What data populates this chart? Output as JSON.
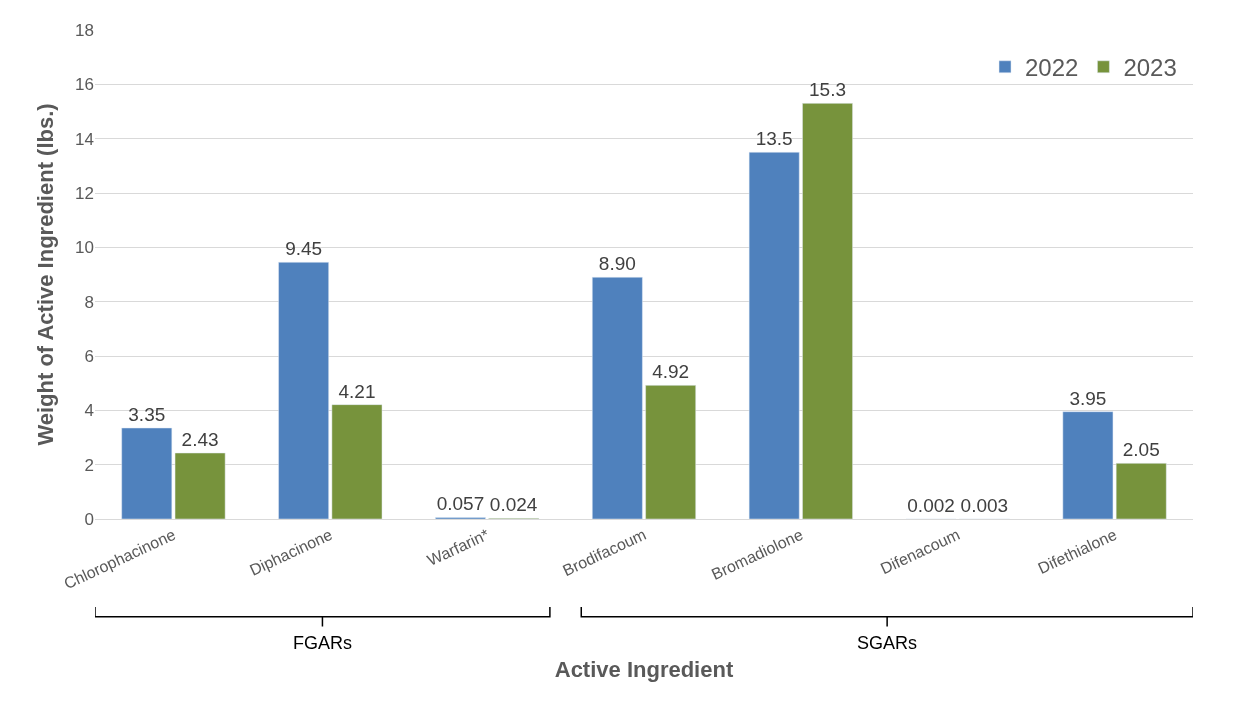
{
  "chart_data": {
    "type": "bar",
    "categories": [
      "Chlorophacinone",
      "Diphacinone",
      "Warfarin*",
      "Brodifacoum",
      "Bromadiolone",
      "Difenacoum",
      "Difethialone"
    ],
    "series": [
      {
        "name": "2022",
        "color": "#4f81bd",
        "values": [
          3.35,
          9.45,
          0.057,
          8.9,
          13.5,
          0.002,
          3.95
        ],
        "value_labels": [
          "3.35",
          "9.45",
          "0.057",
          "8.90",
          "13.5",
          "0.002",
          "3.95"
        ]
      },
      {
        "name": "2023",
        "color": "#77933c",
        "values": [
          2.43,
          4.21,
          0.024,
          4.92,
          15.3,
          0.003,
          2.05
        ],
        "value_labels": [
          "2.43",
          "4.21",
          "0.024",
          "4.92",
          "15.3",
          "0.003",
          "2.05"
        ]
      }
    ],
    "xlabel": "Active Ingredient",
    "ylabel": "Weight of Active Ingredient (lbs.)",
    "ylim": [
      0,
      18
    ],
    "yticks": [
      0,
      2,
      4,
      6,
      8,
      10,
      12,
      14,
      16,
      18
    ],
    "grid": "y",
    "legend": "top right",
    "annotations": [
      "FGARs",
      "SGARs"
    ]
  }
}
